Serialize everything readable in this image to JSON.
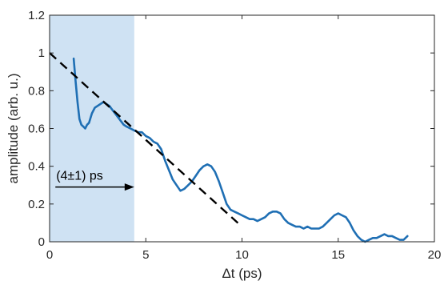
{
  "chart_data": {
    "type": "line",
    "xlabel": "Δt (ps)",
    "ylabel": "amplitude (arb. u.)",
    "xlim": [
      0,
      20
    ],
    "ylim": [
      0,
      1.2
    ],
    "xticks": [
      0,
      5,
      10,
      15,
      20
    ],
    "yticks": [
      0,
      0.2,
      0.4,
      0.6,
      0.8,
      1,
      1.2
    ],
    "grid": false,
    "box": true,
    "series": [
      {
        "color": "#1f6fb4",
        "x": [
          1.25,
          1.35,
          1.45,
          1.55,
          1.65,
          1.75,
          1.85,
          1.95,
          2.05,
          2.2,
          2.35,
          2.5,
          2.65,
          2.8,
          2.95,
          3.1,
          3.25,
          3.4,
          3.55,
          3.7,
          3.85,
          4.0,
          4.2,
          4.4,
          4.6,
          4.8,
          5.0,
          5.2,
          5.4,
          5.6,
          5.8,
          6.0,
          6.2,
          6.4,
          6.6,
          6.8,
          7.0,
          7.2,
          7.4,
          7.6,
          7.8,
          8.0,
          8.2,
          8.4,
          8.6,
          8.8,
          9.0,
          9.2,
          9.4,
          9.6,
          9.8,
          10.0,
          10.2,
          10.4,
          10.6,
          10.8,
          11.0,
          11.2,
          11.4,
          11.6,
          11.8,
          12.0,
          12.2,
          12.4,
          12.6,
          12.8,
          13.0,
          13.2,
          13.4,
          13.6,
          13.8,
          14.0,
          14.2,
          14.4,
          14.6,
          14.8,
          15.0,
          15.2,
          15.4,
          15.6,
          15.8,
          16.0,
          16.2,
          16.4,
          16.6,
          16.8,
          17.0,
          17.2,
          17.4,
          17.6,
          17.8,
          18.0,
          18.2,
          18.4,
          18.6
        ],
        "y": [
          0.97,
          0.85,
          0.74,
          0.65,
          0.62,
          0.61,
          0.6,
          0.62,
          0.63,
          0.68,
          0.71,
          0.72,
          0.73,
          0.74,
          0.73,
          0.72,
          0.7,
          0.68,
          0.66,
          0.64,
          0.62,
          0.61,
          0.6,
          0.59,
          0.58,
          0.58,
          0.56,
          0.55,
          0.53,
          0.52,
          0.49,
          0.43,
          0.38,
          0.33,
          0.3,
          0.27,
          0.28,
          0.3,
          0.32,
          0.35,
          0.38,
          0.4,
          0.41,
          0.4,
          0.37,
          0.32,
          0.26,
          0.2,
          0.17,
          0.16,
          0.15,
          0.14,
          0.13,
          0.12,
          0.12,
          0.11,
          0.12,
          0.13,
          0.15,
          0.16,
          0.16,
          0.15,
          0.12,
          0.1,
          0.09,
          0.08,
          0.08,
          0.07,
          0.08,
          0.07,
          0.07,
          0.07,
          0.08,
          0.1,
          0.12,
          0.14,
          0.15,
          0.14,
          0.13,
          0.1,
          0.06,
          0.03,
          0.01,
          0.0,
          0.01,
          0.02,
          0.02,
          0.03,
          0.04,
          0.03,
          0.03,
          0.02,
          0.01,
          0.01,
          0.03
        ]
      }
    ],
    "fit_line": {
      "x": [
        0,
        10
      ],
      "y": [
        1.0,
        0.08
      ],
      "color": "#000000",
      "style": "dashed"
    },
    "shaded_region": {
      "x": [
        0,
        4.4
      ],
      "color": "#cfe2f3"
    },
    "annotations": [
      {
        "text": "(4±1) ps",
        "arrow_from": [
          0.3,
          0.29
        ],
        "arrow_to": [
          4.4,
          0.29
        ]
      }
    ]
  }
}
